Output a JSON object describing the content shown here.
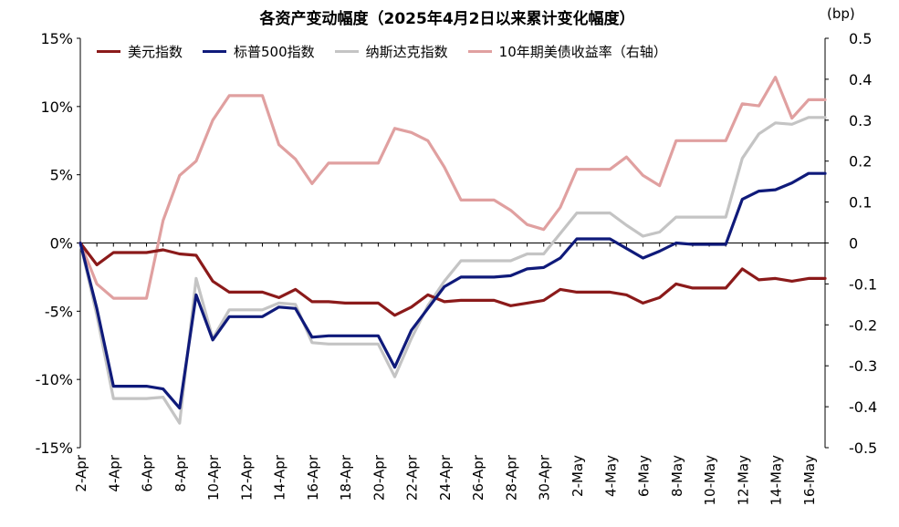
{
  "chart_data": {
    "type": "line",
    "title": "各资产变动幅度（2025年4月2日以来累计变化幅度）",
    "right_unit": "(bp)",
    "x": [
      "2-Apr",
      "3-Apr",
      "4-Apr",
      "5-Apr",
      "6-Apr",
      "7-Apr",
      "8-Apr",
      "9-Apr",
      "10-Apr",
      "11-Apr",
      "12-Apr",
      "13-Apr",
      "14-Apr",
      "15-Apr",
      "16-Apr",
      "17-Apr",
      "18-Apr",
      "19-Apr",
      "20-Apr",
      "21-Apr",
      "22-Apr",
      "23-Apr",
      "24-Apr",
      "25-Apr",
      "26-Apr",
      "27-Apr",
      "28-Apr",
      "29-Apr",
      "30-Apr",
      "1-May",
      "2-May",
      "3-May",
      "4-May",
      "5-May",
      "6-May",
      "7-May",
      "8-May",
      "9-May",
      "10-May",
      "11-May",
      "12-May",
      "13-May",
      "14-May",
      "15-May",
      "16-May",
      "17-May"
    ],
    "x_tick_labels": [
      "2-Apr",
      "4-Apr",
      "6-Apr",
      "8-Apr",
      "10-Apr",
      "12-Apr",
      "14-Apr",
      "16-Apr",
      "18-Apr",
      "20-Apr",
      "22-Apr",
      "24-Apr",
      "26-Apr",
      "28-Apr",
      "30-Apr",
      "2-May",
      "4-May",
      "6-May",
      "8-May",
      "10-May",
      "12-May",
      "14-May",
      "16-May"
    ],
    "y_left": {
      "ticks": [
        "15%",
        "10%",
        "5%",
        "0%",
        "-5%",
        "-10%",
        "-15%"
      ],
      "range": [
        -15,
        15
      ],
      "unit": "%"
    },
    "y_right": {
      "ticks": [
        "0.5",
        "0.4",
        "0.3",
        "0.2",
        "0.1",
        "0",
        "-0.1",
        "-0.2",
        "-0.3",
        "-0.4",
        "-0.5"
      ],
      "range": [
        -0.5,
        0.5
      ]
    },
    "legend_position": "top",
    "grid": false,
    "series": [
      {
        "name": "美元指数",
        "color": "#8b1a1a",
        "axis": "left",
        "values": [
          0,
          -1.6,
          -0.7,
          -0.7,
          -0.7,
          -0.5,
          -0.8,
          -0.9,
          -2.8,
          -3.6,
          -3.6,
          -3.6,
          -4.0,
          -3.4,
          -4.3,
          -4.3,
          -4.4,
          -4.4,
          -4.4,
          -5.3,
          -4.7,
          -3.8,
          -4.3,
          -4.2,
          -4.2,
          -4.2,
          -4.6,
          -4.4,
          -4.2,
          -3.4,
          -3.6,
          -3.6,
          -3.6,
          -3.8,
          -4.4,
          -4.0,
          -3.0,
          -3.3,
          -3.3,
          -3.3,
          -1.9,
          -2.7,
          -2.6,
          -2.8,
          -2.6,
          -2.6
        ]
      },
      {
        "name": "标普500指数",
        "color": "#0f1a7a",
        "axis": "left",
        "values": [
          0,
          -4.8,
          -10.5,
          -10.5,
          -10.5,
          -10.7,
          -12.1,
          -3.8,
          -7.1,
          -5.4,
          -5.4,
          -5.4,
          -4.7,
          -4.8,
          -6.9,
          -6.8,
          -6.8,
          -6.8,
          -6.8,
          -9.1,
          -6.4,
          -4.8,
          -3.2,
          -2.5,
          -2.5,
          -2.5,
          -2.4,
          -1.9,
          -1.8,
          -1.1,
          0.3,
          0.3,
          0.3,
          -0.4,
          -1.1,
          -0.6,
          0.0,
          -0.1,
          -0.1,
          -0.1,
          3.2,
          3.8,
          3.9,
          4.4,
          5.1,
          5.1
        ]
      },
      {
        "name": "纳斯达克指数",
        "color": "#c4c4c4",
        "axis": "left",
        "values": [
          0,
          -5.3,
          -11.4,
          -11.4,
          -11.4,
          -11.3,
          -13.2,
          -2.6,
          -7.0,
          -4.9,
          -4.9,
          -4.9,
          -4.4,
          -4.5,
          -7.3,
          -7.4,
          -7.4,
          -7.4,
          -7.4,
          -9.8,
          -7.0,
          -4.6,
          -2.8,
          -1.3,
          -1.3,
          -1.3,
          -1.3,
          -0.8,
          -0.8,
          0.7,
          2.2,
          2.2,
          2.2,
          1.3,
          0.5,
          0.8,
          1.9,
          1.9,
          1.9,
          1.9,
          6.2,
          8.0,
          8.8,
          8.7,
          9.2,
          9.2
        ]
      },
      {
        "name": "10年期美债收益率（右轴）",
        "color": "#e0a0a0",
        "axis": "right",
        "values": [
          0,
          -0.1,
          -0.135,
          -0.135,
          -0.135,
          0.055,
          0.165,
          0.2,
          0.3,
          0.36,
          0.36,
          0.36,
          0.24,
          0.205,
          0.145,
          0.195,
          0.195,
          0.195,
          0.195,
          0.28,
          0.27,
          0.25,
          0.185,
          0.105,
          0.105,
          0.105,
          0.08,
          0.045,
          0.033,
          0.087,
          0.18,
          0.18,
          0.18,
          0.21,
          0.165,
          0.14,
          0.25,
          0.25,
          0.25,
          0.25,
          0.34,
          0.335,
          0.405,
          0.305,
          0.35,
          0.35
        ]
      }
    ]
  }
}
